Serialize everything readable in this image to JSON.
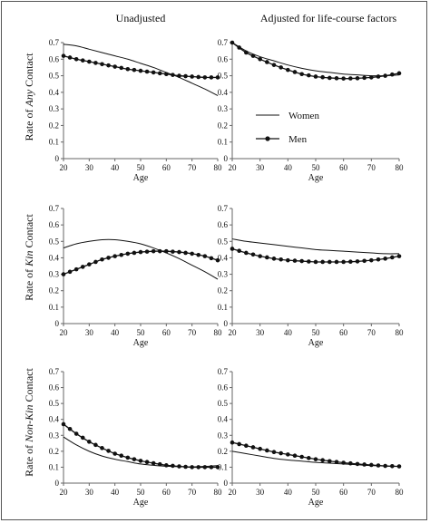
{
  "column_titles": [
    "Unadjusted",
    "Adjusted for life-course factors"
  ],
  "row_labels": [
    {
      "prefix": "Rate of ",
      "italic": "Any",
      "suffix": " Contact"
    },
    {
      "prefix": "Rate of ",
      "italic": "Kin",
      "suffix": " Contact"
    },
    {
      "prefix": "Rate of ",
      "italic": "Non-Kin",
      "suffix": " Contact"
    }
  ],
  "legend": {
    "women": "Women",
    "men": "Men"
  },
  "colors": {
    "line": "#111111",
    "axis": "#666666"
  },
  "chart_data": [
    {
      "type": "line",
      "id": "any-unadjusted",
      "xlabel": "Age",
      "ylabel": "Rate of Any Contact",
      "xlim": [
        20,
        80
      ],
      "ylim": [
        0,
        0.7
      ],
      "x_ticks": [
        "20",
        "30",
        "40",
        "50",
        "60",
        "70",
        "80"
      ],
      "y_ticks": [
        "0",
        "0.1",
        "0.2",
        "0.3",
        "0.4",
        "0.5",
        "0.6",
        "0.7"
      ],
      "series": [
        {
          "name": "Women",
          "marker": "none",
          "x": [
            20,
            25,
            30,
            35,
            40,
            45,
            50,
            55,
            60,
            65,
            70,
            75,
            80
          ],
          "y": [
            0.69,
            0.68,
            0.66,
            0.64,
            0.62,
            0.6,
            0.575,
            0.55,
            0.52,
            0.49,
            0.455,
            0.42,
            0.38
          ]
        },
        {
          "name": "Men",
          "marker": "circle",
          "x": [
            20,
            25,
            30,
            35,
            40,
            45,
            50,
            55,
            60,
            65,
            70,
            75,
            80
          ],
          "y": [
            0.62,
            0.6,
            0.585,
            0.57,
            0.555,
            0.54,
            0.53,
            0.52,
            0.51,
            0.5,
            0.495,
            0.49,
            0.49
          ]
        }
      ]
    },
    {
      "type": "line",
      "id": "any-adjusted",
      "xlabel": "Age",
      "ylabel": "",
      "xlim": [
        20,
        80
      ],
      "ylim": [
        0,
        0.7
      ],
      "x_ticks": [
        "20",
        "30",
        "40",
        "50",
        "60",
        "70",
        "80"
      ],
      "y_ticks": [
        "0",
        "0.1",
        "0.2",
        "0.3",
        "0.4",
        "0.5",
        "0.6",
        "0.7"
      ],
      "legend_position": "middle",
      "series": [
        {
          "name": "Women",
          "marker": "none",
          "x": [
            20,
            25,
            30,
            35,
            40,
            45,
            50,
            55,
            60,
            65,
            70,
            75,
            80
          ],
          "y": [
            0.7,
            0.65,
            0.615,
            0.59,
            0.565,
            0.545,
            0.53,
            0.52,
            0.51,
            0.505,
            0.5,
            0.5,
            0.505
          ]
        },
        {
          "name": "Men",
          "marker": "circle",
          "x": [
            20,
            25,
            30,
            35,
            40,
            45,
            50,
            55,
            60,
            65,
            70,
            75,
            80
          ],
          "y": [
            0.7,
            0.64,
            0.6,
            0.565,
            0.535,
            0.51,
            0.495,
            0.487,
            0.483,
            0.485,
            0.49,
            0.5,
            0.515
          ]
        }
      ]
    },
    {
      "type": "line",
      "id": "kin-unadjusted",
      "xlabel": "Age",
      "ylabel": "Rate of Kin Contact",
      "xlim": [
        20,
        80
      ],
      "ylim": [
        0,
        0.7
      ],
      "x_ticks": [
        "20",
        "30",
        "40",
        "50",
        "60",
        "70",
        "80"
      ],
      "y_ticks": [
        "0",
        "0.1",
        "0.2",
        "0.3",
        "0.4",
        "0.5",
        "0.6",
        "0.7"
      ],
      "series": [
        {
          "name": "Women",
          "marker": "none",
          "x": [
            20,
            25,
            30,
            35,
            40,
            45,
            50,
            55,
            60,
            65,
            70,
            75,
            80
          ],
          "y": [
            0.46,
            0.485,
            0.5,
            0.51,
            0.51,
            0.5,
            0.485,
            0.46,
            0.43,
            0.395,
            0.355,
            0.315,
            0.27
          ]
        },
        {
          "name": "Men",
          "marker": "circle",
          "x": [
            20,
            25,
            30,
            35,
            40,
            45,
            50,
            55,
            60,
            65,
            70,
            75,
            80
          ],
          "y": [
            0.3,
            0.33,
            0.36,
            0.39,
            0.41,
            0.425,
            0.435,
            0.44,
            0.44,
            0.435,
            0.425,
            0.41,
            0.385
          ]
        }
      ]
    },
    {
      "type": "line",
      "id": "kin-adjusted",
      "xlabel": "Age",
      "ylabel": "",
      "xlim": [
        20,
        80
      ],
      "ylim": [
        0,
        0.7
      ],
      "x_ticks": [
        "20",
        "30",
        "40",
        "50",
        "60",
        "70",
        "80"
      ],
      "y_ticks": [
        "0",
        "0.1",
        "0.2",
        "0.3",
        "0.4",
        "0.5",
        "0.6",
        "0.7"
      ],
      "series": [
        {
          "name": "Women",
          "marker": "none",
          "x": [
            20,
            25,
            30,
            35,
            40,
            45,
            50,
            55,
            60,
            65,
            70,
            75,
            80
          ],
          "y": [
            0.515,
            0.5,
            0.49,
            0.48,
            0.47,
            0.46,
            0.45,
            0.445,
            0.44,
            0.435,
            0.43,
            0.425,
            0.425
          ]
        },
        {
          "name": "Men",
          "marker": "circle",
          "x": [
            20,
            25,
            30,
            35,
            40,
            45,
            50,
            55,
            60,
            65,
            70,
            75,
            80
          ],
          "y": [
            0.455,
            0.43,
            0.41,
            0.395,
            0.385,
            0.38,
            0.375,
            0.375,
            0.375,
            0.378,
            0.385,
            0.395,
            0.41
          ]
        }
      ]
    },
    {
      "type": "line",
      "id": "nonkin-unadjusted",
      "xlabel": "Age",
      "ylabel": "Rate of Non-Kin Contact",
      "xlim": [
        20,
        80
      ],
      "ylim": [
        0,
        0.7
      ],
      "x_ticks": [
        "20",
        "30",
        "40",
        "50",
        "60",
        "70",
        "80"
      ],
      "y_ticks": [
        "0",
        "0.1",
        "0.2",
        "0.3",
        "0.4",
        "0.5",
        "0.6",
        "0.7"
      ],
      "series": [
        {
          "name": "Women",
          "marker": "none",
          "x": [
            20,
            25,
            30,
            35,
            40,
            45,
            50,
            55,
            60,
            65,
            70,
            75,
            80
          ],
          "y": [
            0.29,
            0.24,
            0.2,
            0.17,
            0.15,
            0.135,
            0.12,
            0.112,
            0.106,
            0.103,
            0.102,
            0.105,
            0.11
          ]
        },
        {
          "name": "Men",
          "marker": "circle",
          "x": [
            20,
            25,
            30,
            35,
            40,
            45,
            50,
            55,
            60,
            65,
            70,
            75,
            80
          ],
          "y": [
            0.37,
            0.31,
            0.26,
            0.22,
            0.185,
            0.16,
            0.14,
            0.125,
            0.112,
            0.105,
            0.1,
            0.1,
            0.1
          ]
        }
      ]
    },
    {
      "type": "line",
      "id": "nonkin-adjusted",
      "xlabel": "Age",
      "ylabel": "",
      "xlim": [
        20,
        80
      ],
      "ylim": [
        0,
        0.7
      ],
      "x_ticks": [
        "20",
        "30",
        "40",
        "50",
        "60",
        "70",
        "80"
      ],
      "y_ticks": [
        "0",
        "0.1",
        "0.2",
        "0.3",
        "0.4",
        "0.5",
        "0.6",
        "0.7"
      ],
      "series": [
        {
          "name": "Women",
          "marker": "none",
          "x": [
            20,
            25,
            30,
            35,
            40,
            45,
            50,
            55,
            60,
            65,
            70,
            75,
            80
          ],
          "y": [
            0.2,
            0.185,
            0.17,
            0.155,
            0.145,
            0.138,
            0.13,
            0.125,
            0.12,
            0.115,
            0.11,
            0.107,
            0.105
          ]
        },
        {
          "name": "Men",
          "marker": "circle",
          "x": [
            20,
            25,
            30,
            35,
            40,
            45,
            50,
            55,
            60,
            65,
            70,
            75,
            80
          ],
          "y": [
            0.255,
            0.235,
            0.215,
            0.195,
            0.18,
            0.165,
            0.15,
            0.138,
            0.128,
            0.12,
            0.114,
            0.108,
            0.105
          ]
        }
      ]
    }
  ]
}
